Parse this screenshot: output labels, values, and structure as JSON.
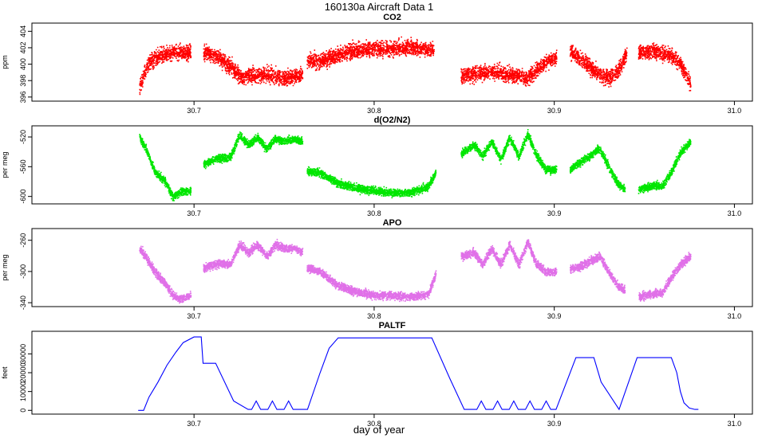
{
  "figure": {
    "title": "160130a   Aircraft Data 1",
    "xlabel": "day of year"
  },
  "chart_data": [
    {
      "type": "scatter",
      "title": "CO2",
      "ylabel": "ppm",
      "color": "#ff0000",
      "xlim": [
        30.61,
        31.01
      ],
      "ylim": [
        395.5,
        405
      ],
      "xticks": [
        30.7,
        30.8,
        30.9,
        31.0
      ],
      "xtick_labels": [
        "30.7",
        "30.8",
        "30.9",
        "31.0"
      ],
      "yticks": [
        396,
        398,
        400,
        402,
        404
      ],
      "ytick_labels": [
        "396",
        "398",
        "400",
        "402",
        "404"
      ],
      "noise": 0.9,
      "segments": [
        {
          "x": [
            30.6695,
            30.6715,
            30.675,
            30.68,
            30.69,
            30.698
          ],
          "y": [
            397.3,
            398.6,
            400.2,
            401.0,
            401.6,
            401.5
          ]
        },
        {
          "x": [
            30.705,
            30.712,
            30.72,
            30.726,
            30.73,
            30.74,
            30.75,
            30.76
          ],
          "y": [
            401.5,
            401.0,
            399.8,
            398.5,
            398.6,
            398.8,
            398.4,
            398.8
          ]
        },
        {
          "x": [
            30.7625,
            30.77,
            30.78,
            30.79,
            30.8,
            30.81,
            30.82,
            30.833
          ],
          "y": [
            400.5,
            400.4,
            401.2,
            401.8,
            402.0,
            401.9,
            402.1,
            401.8
          ]
        },
        {
          "x": [
            30.848,
            30.855,
            30.865,
            30.875,
            30.885,
            30.895,
            30.901
          ],
          "y": [
            398.7,
            398.8,
            399.2,
            398.8,
            398.4,
            400.3,
            400.8
          ]
        },
        {
          "x": [
            30.9085,
            30.915,
            30.925,
            30.93,
            30.935,
            30.94
          ],
          "y": [
            401.6,
            400.6,
            398.8,
            398.4,
            399.2,
            401.4
          ]
        },
        {
          "x": [
            30.9465,
            30.955,
            30.965,
            30.97,
            30.9755
          ],
          "y": [
            401.4,
            401.7,
            401.1,
            400.0,
            397.6
          ]
        }
      ]
    },
    {
      "type": "scatter",
      "title": "d(O2/N2)",
      "ylabel": "per meg",
      "color": "#00e600",
      "xlim": [
        30.61,
        31.01
      ],
      "ylim": [
        -610,
        -505
      ],
      "xticks": [
        30.7,
        30.8,
        30.9,
        31.0
      ],
      "xtick_labels": [
        "30.7",
        "30.8",
        "30.9",
        "31.0"
      ],
      "yticks": [
        -600,
        -560,
        -520
      ],
      "ytick_labels": [
        "-600",
        "-560",
        "-520"
      ],
      "noise": 5,
      "segments": [
        {
          "x": [
            30.6695,
            30.673,
            30.678,
            30.684,
            30.688,
            30.692,
            30.698
          ],
          "y": [
            -520,
            -535,
            -565,
            -580,
            -600,
            -594,
            -592
          ]
        },
        {
          "x": [
            30.705,
            30.712,
            30.72,
            30.725,
            30.73,
            30.735,
            30.74,
            30.745,
            30.75,
            30.755,
            30.76
          ],
          "y": [
            -556,
            -548,
            -547,
            -517,
            -530,
            -520,
            -535,
            -522,
            -525,
            -522,
            -525
          ]
        },
        {
          "x": [
            30.7625,
            30.77,
            30.78,
            30.79,
            30.8,
            30.81,
            30.82,
            30.83,
            30.834
          ],
          "y": [
            -565,
            -568,
            -582,
            -588,
            -592,
            -594,
            -594,
            -586,
            -567
          ]
        },
        {
          "x": [
            30.848,
            30.855,
            30.86,
            30.865,
            30.87,
            30.875,
            30.88,
            30.885,
            30.89,
            30.895,
            30.901
          ],
          "y": [
            -542,
            -530,
            -545,
            -525,
            -550,
            -520,
            -545,
            -515,
            -545,
            -563,
            -563
          ]
        },
        {
          "x": [
            30.9085,
            30.915,
            30.925,
            30.93,
            30.935,
            30.939
          ],
          "y": [
            -563,
            -552,
            -535,
            -560,
            -582,
            -590
          ]
        },
        {
          "x": [
            30.9465,
            30.955,
            30.96,
            30.965,
            30.97,
            30.9755
          ],
          "y": [
            -590,
            -585,
            -585,
            -565,
            -540,
            -525
          ]
        }
      ]
    },
    {
      "type": "scatter",
      "title": "APO",
      "ylabel": "per meg",
      "color": "#e070e8",
      "xlim": [
        30.61,
        31.01
      ],
      "ylim": [
        -345,
        -245
      ],
      "xticks": [
        30.7,
        30.8,
        30.9,
        31.0
      ],
      "xtick_labels": [
        "30.7",
        "30.8",
        "30.9",
        "31.0"
      ],
      "yticks": [
        -340,
        -300,
        -260
      ],
      "ytick_labels": [
        "-340",
        "-300",
        "-260"
      ],
      "noise": 5,
      "segments": [
        {
          "x": [
            30.6695,
            30.673,
            30.678,
            30.684,
            30.688,
            30.692,
            30.698
          ],
          "y": [
            -270,
            -280,
            -300,
            -315,
            -330,
            -335,
            -330
          ]
        },
        {
          "x": [
            30.705,
            30.712,
            30.72,
            30.725,
            30.73,
            30.735,
            30.74,
            30.745,
            30.75,
            30.755,
            30.76
          ],
          "y": [
            -295,
            -290,
            -290,
            -265,
            -275,
            -265,
            -280,
            -265,
            -270,
            -270,
            -275
          ]
        },
        {
          "x": [
            30.7625,
            30.77,
            30.78,
            30.79,
            30.8,
            30.81,
            30.82,
            30.83,
            30.834
          ],
          "y": [
            -295,
            -300,
            -318,
            -325,
            -330,
            -330,
            -332,
            -328,
            -302
          ]
        },
        {
          "x": [
            30.848,
            30.855,
            30.86,
            30.865,
            30.87,
            30.875,
            30.88,
            30.885,
            30.89,
            30.895,
            30.901
          ],
          "y": [
            -280,
            -275,
            -290,
            -270,
            -290,
            -265,
            -290,
            -262,
            -290,
            -300,
            -300
          ]
        },
        {
          "x": [
            30.9085,
            30.915,
            30.925,
            30.93,
            30.935,
            30.939
          ],
          "y": [
            -296,
            -292,
            -280,
            -300,
            -318,
            -323
          ]
        },
        {
          "x": [
            30.9465,
            30.955,
            30.96,
            30.965,
            30.97,
            30.9755
          ],
          "y": [
            -332,
            -328,
            -326,
            -305,
            -290,
            -280
          ]
        }
      ]
    },
    {
      "type": "line",
      "title": "PALTF",
      "ylabel": "feet",
      "color": "#0000ff",
      "xlim": [
        30.61,
        31.01
      ],
      "ylim": [
        -2000,
        42000
      ],
      "xticks": [
        30.7,
        30.8,
        30.9,
        31.0
      ],
      "xtick_labels": [
        "30.7",
        "30.8",
        "30.9",
        "31.0"
      ],
      "yticks": [
        0,
        10000,
        20000,
        30000
      ],
      "ytick_labels": [
        "0",
        "10000",
        "20000",
        "30000"
      ],
      "x": [
        30.669,
        30.672,
        30.675,
        30.68,
        30.685,
        30.69,
        30.694,
        30.7,
        30.704,
        30.705,
        30.712,
        30.722,
        30.73,
        30.73,
        30.732,
        30.7345,
        30.737,
        30.739,
        30.741,
        30.7435,
        30.746,
        30.748,
        30.75,
        30.7525,
        30.755,
        30.763,
        30.77,
        30.775,
        30.78,
        30.832,
        30.842,
        30.85,
        30.855,
        30.857,
        30.8595,
        30.862,
        30.864,
        30.866,
        30.8685,
        30.871,
        30.873,
        30.875,
        30.8775,
        30.88,
        30.882,
        30.884,
        30.8865,
        30.889,
        30.891,
        30.893,
        30.8955,
        30.898,
        30.901,
        30.912,
        30.922,
        30.926,
        30.936,
        30.946,
        30.965,
        30.968,
        30.97,
        30.972,
        30.975,
        30.978,
        30.98
      ],
      "y": [
        0,
        0,
        7000,
        15000,
        24000,
        31000,
        36000,
        39000,
        39000,
        25000,
        25000,
        5000,
        500,
        500,
        500,
        5000,
        500,
        500,
        500,
        5000,
        500,
        500,
        500,
        5000,
        500,
        500,
        20000,
        33000,
        38500,
        38500,
        17000,
        500,
        500,
        500,
        5000,
        500,
        500,
        500,
        5000,
        500,
        500,
        500,
        5000,
        500,
        500,
        500,
        5000,
        500,
        500,
        500,
        5000,
        500,
        500,
        28000,
        28000,
        15000,
        500,
        28000,
        28000,
        20000,
        10000,
        4000,
        1200,
        500,
        500
      ]
    }
  ]
}
